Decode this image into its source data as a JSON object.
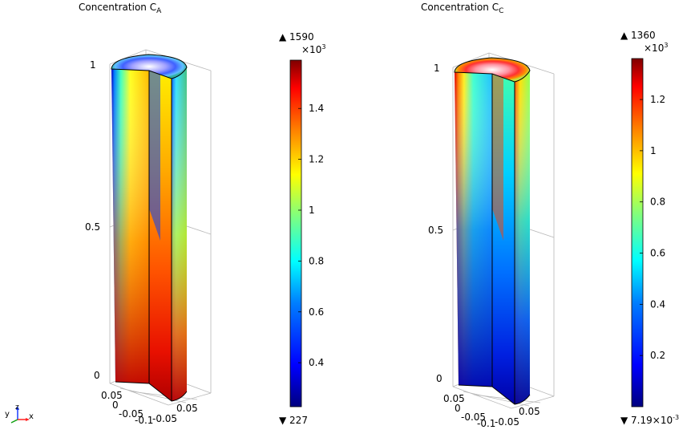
{
  "plots": [
    {
      "title_main": "Concentration C",
      "title_sub": "A",
      "z_ticks": [
        "1",
        "0.5",
        "0"
      ],
      "xy_ticks": [
        "0.05",
        "0",
        "-0.05",
        "-0.1",
        "-0.05",
        "0.05"
      ],
      "colorbar": {
        "max_label": "▲ 1590",
        "min_label": "▼ 227",
        "multiplier": "×10",
        "multiplier_exp": "3",
        "ticks": [
          "1.4",
          "1.2",
          "1",
          "0.8",
          "0.6",
          "0.4"
        ],
        "tick_values": [
          1.4,
          1.2,
          1.0,
          0.8,
          0.6,
          0.4
        ],
        "range": [
          0.227,
          1.59
        ]
      }
    },
    {
      "title_main": "Concentration C",
      "title_sub": "C",
      "z_ticks": [
        "1",
        "0.5",
        "0"
      ],
      "xy_ticks": [
        "0.05",
        "0",
        "-0.05",
        "-0.1",
        "-0.05",
        "0.05"
      ],
      "colorbar": {
        "max_label": "▲ 1360",
        "min_label": "▼ 7.19×10",
        "min_exp": "-3",
        "multiplier": "×10",
        "multiplier_exp": "3",
        "ticks": [
          "1.2",
          "1",
          "0.8",
          "0.6",
          "0.4",
          "0.2"
        ],
        "tick_values": [
          1.2,
          1.0,
          0.8,
          0.6,
          0.4,
          0.2
        ],
        "range": [
          7.19e-06,
          1.36
        ]
      }
    }
  ],
  "triad": {
    "x": "x",
    "y": "y",
    "z": "z"
  },
  "colors": {
    "jet": [
      "#00007f",
      "#0000ff",
      "#007fff",
      "#00ffff",
      "#7fff7f",
      "#ffff00",
      "#ff7f00",
      "#ff0000",
      "#7f0000"
    ]
  }
}
